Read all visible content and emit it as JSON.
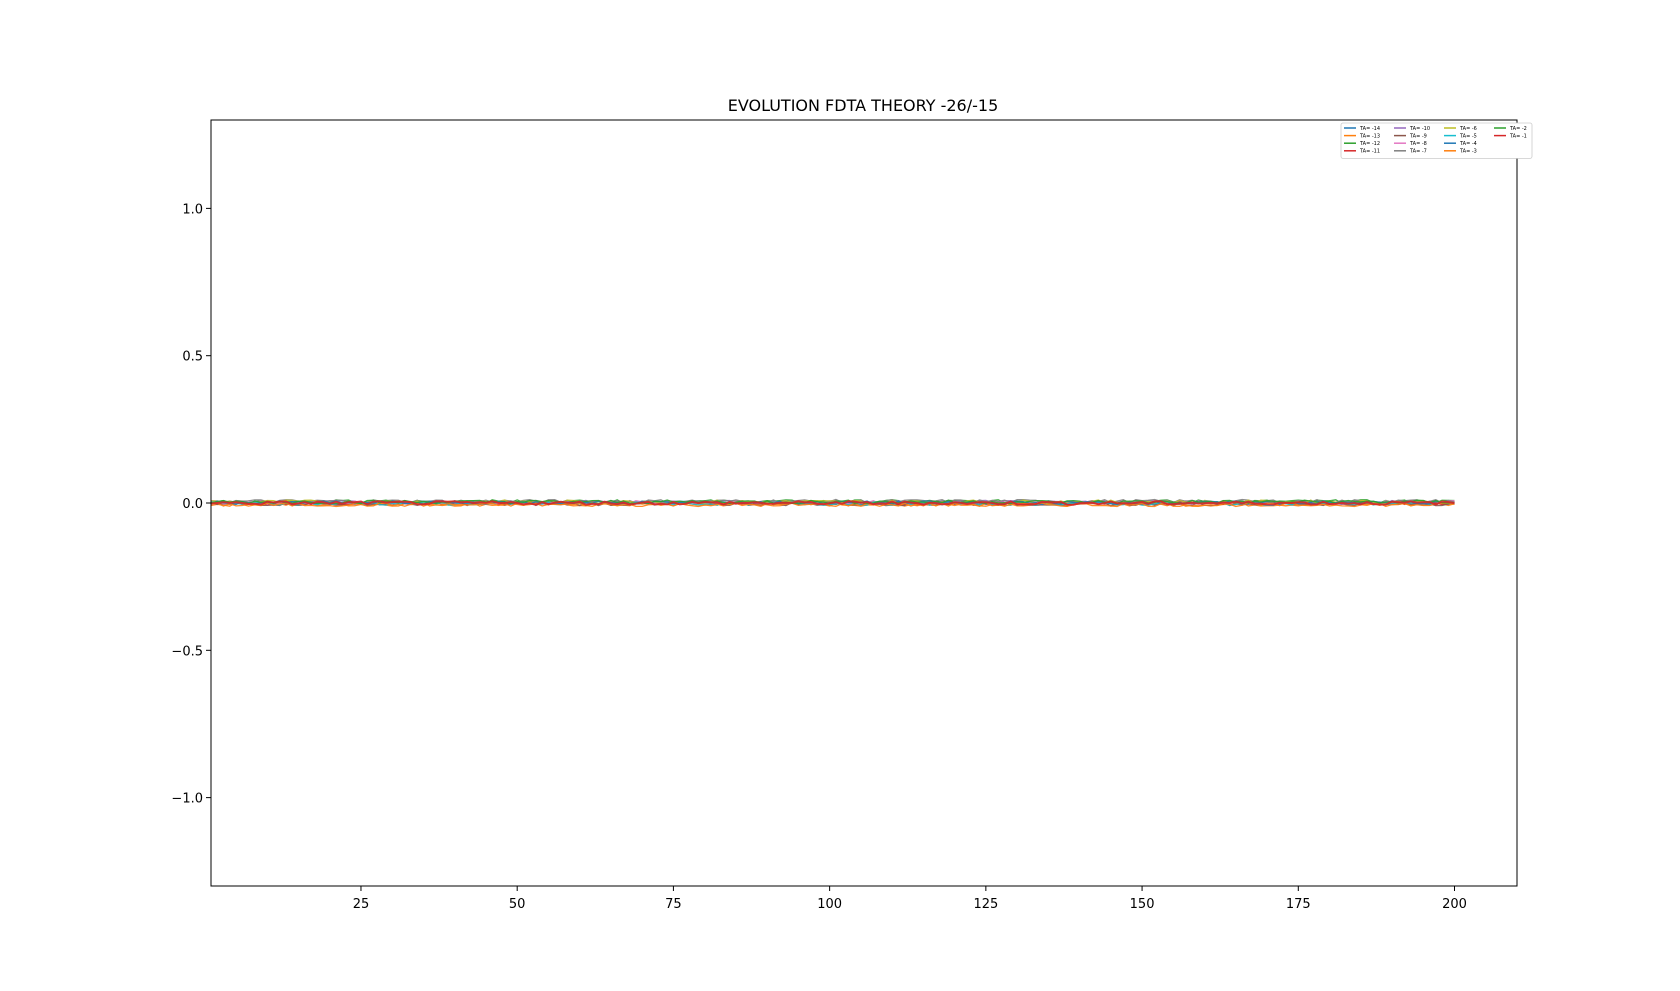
{
  "chart_data": {
    "type": "line",
    "title": "EVOLUTION FDTA THEORY -26/-15",
    "xlabel": "",
    "ylabel": "",
    "xlim": [
      1,
      210
    ],
    "ylim": [
      -1.3,
      1.3
    ],
    "xticks": [
      25,
      50,
      75,
      100,
      125,
      150,
      175,
      200
    ],
    "xtick_labels": [
      "25",
      "50",
      "75",
      "100",
      "125",
      "150",
      "175",
      "200"
    ],
    "yticks": [
      1.0,
      0.5,
      0.0,
      -0.5,
      -1.0
    ],
    "ytick_labels": [
      "1.0",
      "0.5",
      "0.0",
      "−0.5",
      "−1.0"
    ],
    "grid": false,
    "legend_placement": "top-right",
    "legend_columns": 4,
    "x_start": 1,
    "x_end": 200,
    "series": [
      {
        "name": "TA= -14",
        "color": "#1f77b4",
        "value": 0.0
      },
      {
        "name": "TA= -13",
        "color": "#ff7f0e",
        "value": -0.005
      },
      {
        "name": "TA= -12",
        "color": "#2ca02c",
        "value": 0.005
      },
      {
        "name": "TA= -11",
        "color": "#d62728",
        "value": 0.0
      },
      {
        "name": "TA= -10",
        "color": "#9467bd",
        "value": 0.003
      },
      {
        "name": "TA= -9",
        "color": "#8c564b",
        "value": -0.003
      },
      {
        "name": "TA= -8",
        "color": "#e377c2",
        "value": 0.002
      },
      {
        "name": "TA= -7",
        "color": "#7f7f7f",
        "value": 0.006
      },
      {
        "name": "TA= -6",
        "color": "#bcbd22",
        "value": 0.004
      },
      {
        "name": "TA= -5",
        "color": "#17becf",
        "value": -0.002
      },
      {
        "name": "TA= -4",
        "color": "#1f77b4",
        "value": 0.001
      },
      {
        "name": "TA= -3",
        "color": "#ff7f0e",
        "value": -0.006
      },
      {
        "name": "TA= -2",
        "color": "#2ca02c",
        "value": 0.004
      },
      {
        "name": "TA= -1",
        "color": "#d62728",
        "value": 0.0
      }
    ]
  }
}
